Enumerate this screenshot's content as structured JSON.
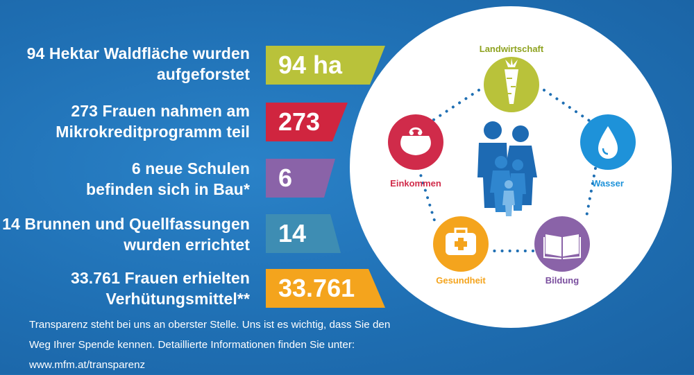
{
  "colors": {
    "background": "#1f6fb3",
    "green": "#b9c23a",
    "red": "#d0253f",
    "purple": "#8a63a8",
    "teal": "#3e8db3",
    "orange": "#f4a41d",
    "crimson": "#d02b4a",
    "sky": "#1e92d9",
    "family_blue": "#1d6ab3"
  },
  "stats": [
    {
      "label_lines": [
        "94 Hektar Waldfläche wurden",
        "aufgeforstet"
      ],
      "value": "94 ha",
      "color": "#b9c23a"
    },
    {
      "label_lines": [
        "273 Frauen nahmen am",
        "Mikrokreditprogramm teil"
      ],
      "value": "273",
      "color": "#d0253f"
    },
    {
      "label_lines": [
        "6 neue Schulen",
        "befinden sich in Bau*"
      ],
      "value": "6",
      "color": "#8a63a8"
    },
    {
      "label_lines": [
        "14 Brunnen und Quellfassungen",
        "wurden errichtet"
      ],
      "value": "14",
      "color": "#3e8db3"
    },
    {
      "label_lines": [
        "33.761 Frauen erhielten",
        "Verhütungsmittel**"
      ],
      "value": "33.761",
      "color": "#f4a41d"
    }
  ],
  "footer": {
    "line1": "Transparenz steht bei uns an oberster Stelle. Uns ist es wichtig, dass Sie den",
    "line2": "Weg Ihrer Spende kennen. Detaillierte Informationen finden Sie unter:",
    "line3": "www.mfm.at/transparenz"
  },
  "cycle": {
    "landwirtschaft": {
      "label": "Landwirtschaft",
      "icon": "carrot-icon",
      "color": "#b9c23a"
    },
    "wasser": {
      "label": "Wasser",
      "icon": "water-drop-icon",
      "color": "#1e92d9"
    },
    "bildung": {
      "label": "Bildung",
      "icon": "book-icon",
      "color": "#8a63a8"
    },
    "gesundheit": {
      "label": "Gesundheit",
      "icon": "medical-kit-icon",
      "color": "#f4a41d"
    },
    "einkommen": {
      "label": "Einkommen",
      "icon": "purse-icon",
      "color": "#d02b4a"
    },
    "center_icon": "family-icon"
  }
}
